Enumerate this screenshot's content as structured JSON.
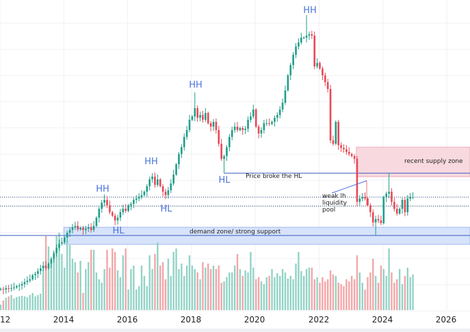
{
  "chart_data": {
    "type": "candlestick",
    "interval": "monthly",
    "start_month": "2012-01",
    "price_axis_shown": false,
    "grid": true,
    "colors": {
      "up": "#1f9e89",
      "down": "#e84855",
      "up_volume": "#93d3c6",
      "down_volume": "#f3a6a8"
    },
    "x_ticks": [
      "2012",
      "2014",
      "2016",
      "2018",
      "2020",
      "2022",
      "2024",
      "2026"
    ],
    "closes": [
      28,
      27,
      29,
      28,
      29,
      30,
      32,
      33,
      35,
      38,
      40,
      42,
      48,
      50,
      54,
      58,
      62,
      58,
      65,
      72,
      80,
      88,
      94,
      96,
      103,
      110,
      114,
      118,
      120,
      115,
      117,
      114,
      116,
      118,
      114,
      120,
      132,
      145,
      154,
      158,
      150,
      140,
      135,
      128,
      132,
      140,
      145,
      142,
      150,
      152,
      158,
      160,
      162,
      165,
      170,
      178,
      188,
      192,
      180,
      188,
      178,
      170,
      165,
      172,
      182,
      195,
      210,
      225,
      235,
      250,
      260,
      275,
      280,
      292,
      278,
      282,
      275,
      285,
      270,
      265,
      272,
      260,
      240,
      218,
      222,
      235,
      250,
      260,
      265,
      260,
      263,
      260,
      262,
      275,
      280,
      290,
      265,
      255,
      260,
      270,
      270,
      269,
      272,
      278,
      282,
      290,
      300,
      318,
      340,
      355,
      370,
      382,
      388,
      395,
      395,
      398,
      400,
      398,
      353,
      358,
      350,
      340,
      330,
      320,
      245,
      240,
      272,
      238,
      234,
      232,
      228,
      225,
      222,
      218,
      155,
      160,
      162,
      160,
      150,
      140,
      125,
      130,
      128,
      124,
      162,
      167,
      170,
      155,
      145,
      138,
      145,
      158,
      140,
      160,
      162,
      162
    ],
    "volumes": [
      8,
      14,
      18,
      20,
      22,
      17,
      19,
      20,
      21,
      20,
      19,
      22,
      25,
      20,
      22,
      24,
      60,
      108,
      93,
      70,
      85,
      108,
      113,
      82,
      62,
      100,
      95,
      75,
      70,
      55,
      72,
      25,
      60,
      70,
      88,
      88,
      55,
      45,
      40,
      60,
      88,
      62,
      90,
      85,
      58,
      48,
      80,
      90,
      30,
      60,
      65,
      30,
      35,
      65,
      50,
      35,
      80,
      60,
      82,
      99,
      65,
      70,
      45,
      75,
      50,
      85,
      90,
      60,
      68,
      50,
      65,
      80,
      65,
      60,
      55,
      45,
      70,
      62,
      68,
      60,
      65,
      60,
      65,
      40,
      42,
      48,
      55,
      55,
      65,
      82,
      60,
      50,
      58,
      55,
      85,
      62,
      45,
      48,
      42,
      38,
      48,
      50,
      60,
      48,
      54,
      50,
      60,
      55,
      46,
      50,
      45,
      68,
      85,
      57,
      50,
      60,
      62,
      62,
      45,
      48,
      40,
      48,
      42,
      45,
      58,
      52,
      50,
      40,
      38,
      35,
      45,
      42,
      50,
      45,
      80,
      55,
      40,
      30,
      48,
      55,
      75,
      50,
      40,
      65,
      60,
      50,
      90,
      55,
      40,
      45,
      60,
      38,
      50,
      62,
      48,
      52
    ],
    "extremes": [
      {
        "month": "2015-04",
        "high": 166
      },
      {
        "month": "2018-02",
        "high": 315
      },
      {
        "month": "2019-01",
        "low": 197
      },
      {
        "month": "2021-08",
        "high": 428
      },
      {
        "month": "2023-10",
        "low": 106
      },
      {
        "month": "2024-03",
        "high": 197
      }
    ],
    "zones": [
      {
        "name": "recent supply zone",
        "color": "#f8d9e0",
        "from": "2023-03",
        "top": 235,
        "bottom": 192
      },
      {
        "name": "demand zone/ strong support",
        "color": "#d7e3fb",
        "from": "2014-01",
        "top": 118,
        "bottom": 93
      }
    ],
    "levels": [
      {
        "value": 106,
        "style": "solid",
        "color": "#3658c0"
      },
      {
        "value": 197,
        "style": "solid",
        "color": "#3658c0",
        "from": "2019-01"
      },
      {
        "value": 162,
        "style": "dotted",
        "color": "#2c4a7a"
      },
      {
        "value": 149,
        "style": "dotted",
        "color": "#2c4a7a"
      }
    ],
    "structure_labels": [
      {
        "text": "HH",
        "month": "2021-09"
      },
      {
        "text": "HH",
        "month": "2018-03"
      },
      {
        "text": "HH",
        "month": "2016-09"
      },
      {
        "text": "HH",
        "month": "2015-04"
      },
      {
        "text": "HL",
        "month": "2019-01"
      },
      {
        "text": "HL",
        "month": "2017-03"
      },
      {
        "text": "HL",
        "month": "2015-07"
      }
    ],
    "annotations": {
      "broke_hl": "Price broke the HL",
      "supply": "recent supply zone",
      "demand": "demand zone/ strong support",
      "weak_lh": [
        "weak lh",
        "liquidity",
        "pool"
      ]
    }
  }
}
